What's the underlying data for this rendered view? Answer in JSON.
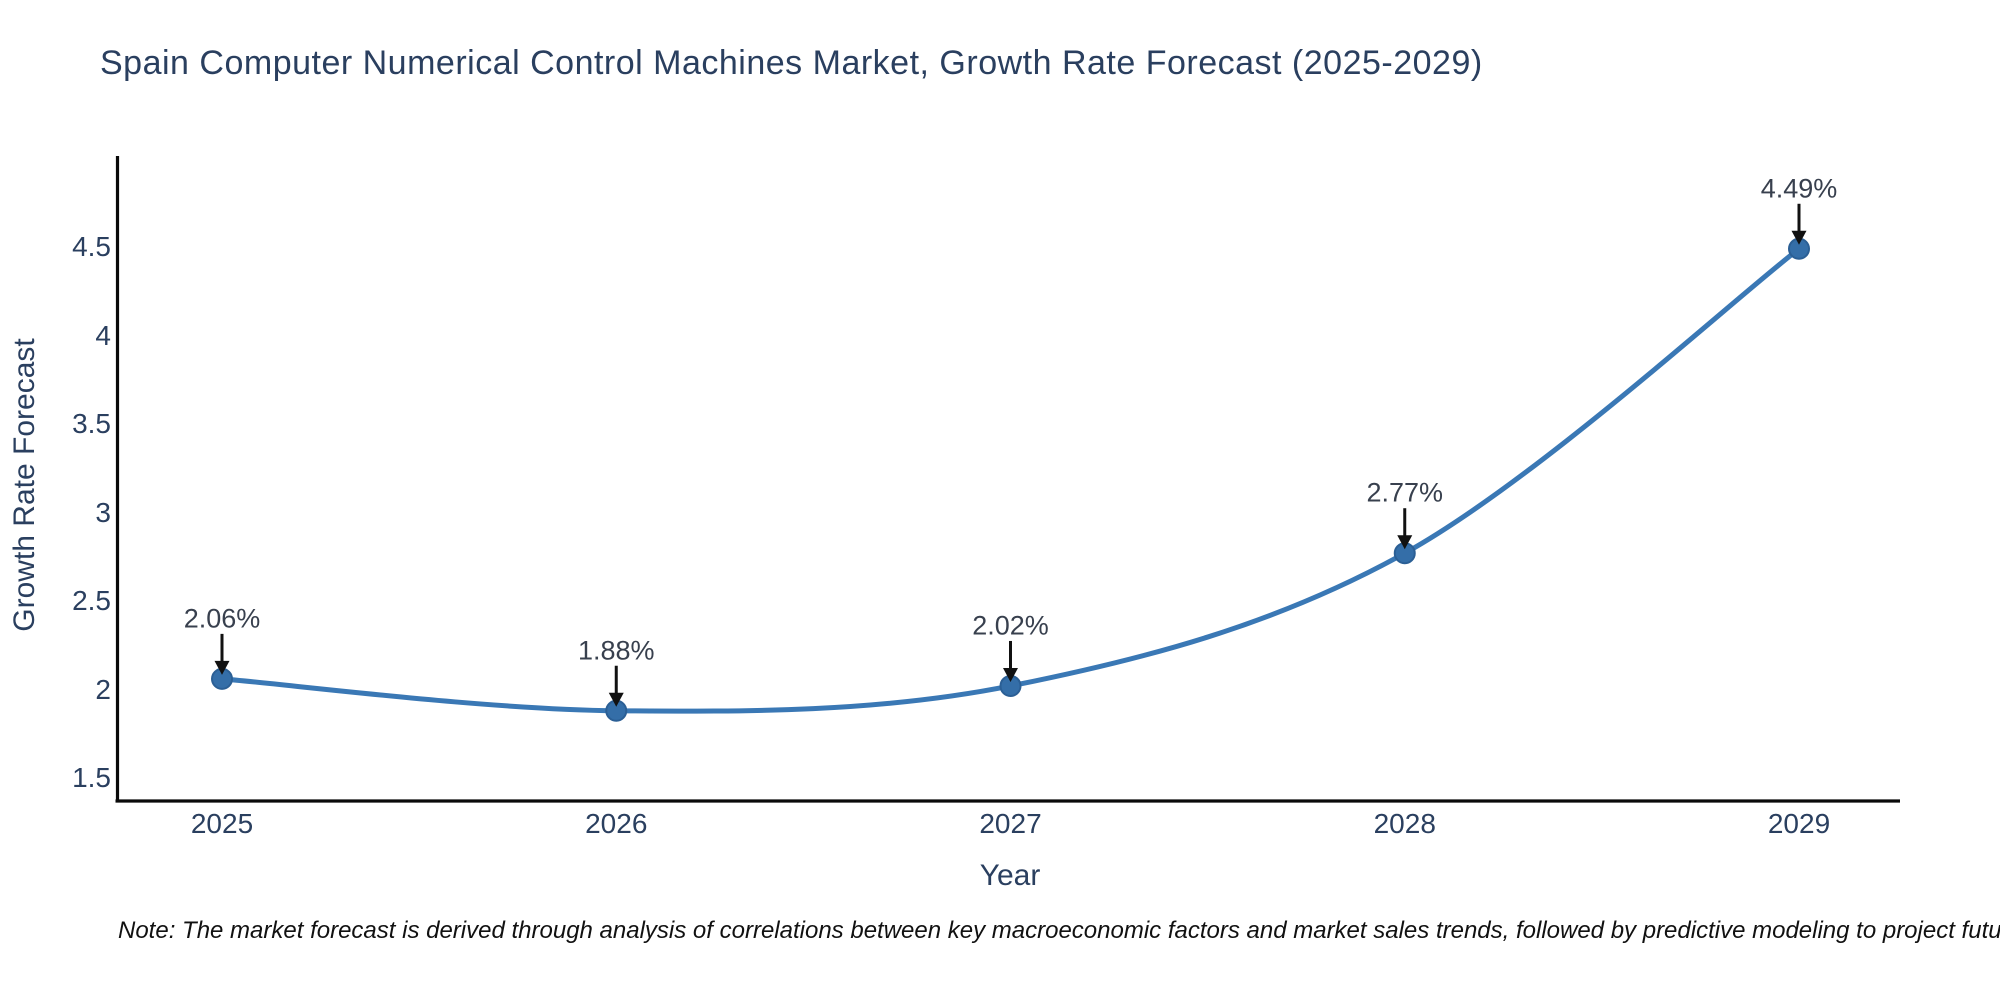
{
  "chart_data": {
    "type": "line",
    "title": "Spain Computer Numerical Control Machines Market, Growth Rate Forecast (2025-2029)",
    "xlabel": "Year",
    "ylabel": "Growth Rate Forecast",
    "x": [
      2025,
      2026,
      2027,
      2028,
      2029
    ],
    "values": [
      2.06,
      1.88,
      2.02,
      2.77,
      4.49
    ],
    "point_labels": [
      "2.06%",
      "1.88%",
      "2.02%",
      "2.77%",
      "4.49%"
    ],
    "x_tick_labels": [
      "2025",
      "2026",
      "2027",
      "2028",
      "2029"
    ],
    "y_ticks": [
      1.5,
      2,
      2.5,
      3,
      3.5,
      4,
      4.5
    ],
    "y_tick_labels": [
      "1.5",
      "2",
      "2.5",
      "3",
      "3.5",
      "4",
      "4.5"
    ],
    "ylim": [
      1.18,
      5.02
    ],
    "xlim": [
      2024.73,
      2029.26
    ],
    "grid": false,
    "legend": "none",
    "line_shape": "spline",
    "colors": {
      "line": "#3a78b5",
      "marker_fill": "#346ea8",
      "marker_stroke": "#2b5f95",
      "axis": "#0a0a0a",
      "arrow": "#111111",
      "text": "#2a3f5f",
      "annotation_text": "#38404e"
    }
  },
  "footnote": "Note: The market forecast is derived through analysis of correlations between key macroeconomic factors and market sales trends, followed by predictive modeling to project future sales"
}
